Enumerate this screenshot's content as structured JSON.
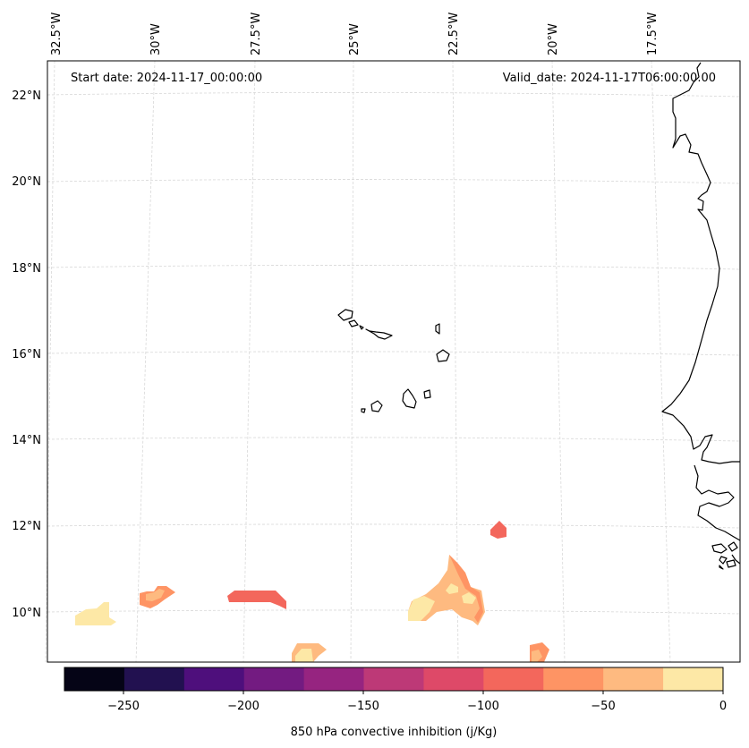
{
  "map": {
    "start_label": "Start date: 2024-11-17_00:00:00",
    "valid_label": "Valid_date: 2024-11-17T06:00:00.00",
    "lon_labels": [
      "32.5°W",
      "30°W",
      "27.5°W",
      "25°W",
      "22.5°W",
      "20°W",
      "17.5°W"
    ],
    "lat_labels": [
      "22°N",
      "20°N",
      "18°N",
      "16°N",
      "14°N",
      "12°N",
      "10°N"
    ],
    "coastline_color": "#000000",
    "gridline_color": "#cccccc"
  },
  "colorbar": {
    "label": "850 hPa convective inhibition (j/Kg)",
    "ticks": [
      "−250",
      "−200",
      "−150",
      "−100",
      "−50",
      "0"
    ],
    "min": -275,
    "max": 0,
    "colors": [
      "#050416",
      "#221150",
      "#4e0f7c",
      "#731b81",
      "#962480",
      "#bd3977",
      "#de4968",
      "#f3675c",
      "#fe9464",
      "#feba80",
      "#fde8a6"
    ]
  },
  "cin_regions": [
    {
      "name": "blob-far-west",
      "value_range": "0 to -25"
    },
    {
      "name": "blob-west-a",
      "value_range": "-50 to -75"
    },
    {
      "name": "blob-west-b",
      "value_range": "-75 to -100"
    },
    {
      "name": "blob-central-south",
      "value_range": "-25 to -50"
    },
    {
      "name": "blob-south-cluster",
      "value_range": "-25 to -75"
    },
    {
      "name": "blob-north-small",
      "value_range": "-75 to -100"
    },
    {
      "name": "blob-east-south",
      "value_range": "-50 to -75"
    }
  ]
}
